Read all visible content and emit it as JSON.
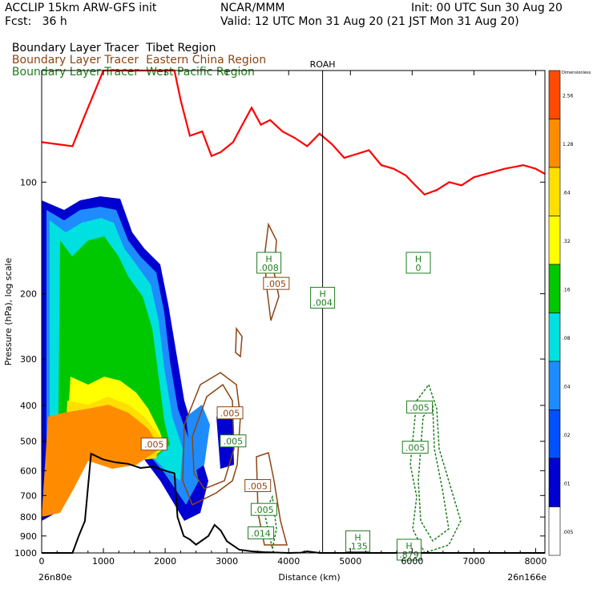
{
  "header": {
    "model": "ACCLIP 15km ARW-GFS init",
    "fcst": "Fcst:   36 h",
    "center": "NCAR/MMM",
    "init": "Init: 00 UTC Sun 30 Aug 20",
    "valid": "Valid: 12 UTC Mon 31 Aug 20 (21 JST Mon 31 Aug 20)",
    "fields": [
      {
        "name": "Boundary Layer Tracer",
        "region": "Tibet Region",
        "color": "#000000"
      },
      {
        "name": "Boundary Layer Tracer",
        "region": "Eastern China Region",
        "color": "#8b4513"
      },
      {
        "name": "Boundary Layer Tracer",
        "region": "West Pacific Region",
        "color": "#1e7d1e"
      }
    ]
  },
  "chart_data": {
    "type": "cross-section",
    "xlabel": "Distance (km)",
    "ylabel": "Pressure (hPa), log scale",
    "x_ticks": [
      "0",
      "1000",
      "2000",
      "3000",
      "4000",
      "5000",
      "6000",
      "7000",
      "8000"
    ],
    "y_ticks": [
      "100",
      "200",
      "300",
      "400",
      "500",
      "600",
      "700",
      "800",
      "900",
      "1000"
    ],
    "xlim": [
      0,
      8150
    ],
    "ylim": [
      1000,
      50
    ],
    "endpoints": {
      "left": "26n80e",
      "right": "26n166e"
    },
    "station": {
      "name": "ROAH",
      "x": 4550
    },
    "colorbar": {
      "title": "Dimensionless",
      "levels": [
        "2.56",
        "1.28",
        ".64",
        ".32",
        ".16",
        ".08",
        ".04",
        ".02",
        ".01",
        ".005"
      ],
      "colors": [
        "#ff4b00",
        "#ff8c00",
        "#ffdf00",
        "#ffff00",
        "#00c800",
        "#00e0e0",
        "#1e8cff",
        "#0050ff",
        "#0000d0",
        "#ffffff"
      ]
    },
    "tropopause": {
      "color": "#ff0000",
      "points": [
        [
          0,
          78
        ],
        [
          500,
          80
        ],
        [
          700,
          66
        ],
        [
          1000,
          50
        ],
        [
          2150,
          50
        ],
        [
          2250,
          60
        ],
        [
          2400,
          75
        ],
        [
          2600,
          73
        ],
        [
          2750,
          85
        ],
        [
          2900,
          83
        ],
        [
          3100,
          78
        ],
        [
          3250,
          70
        ],
        [
          3400,
          63
        ],
        [
          3550,
          70
        ],
        [
          3700,
          68
        ],
        [
          3900,
          73
        ],
        [
          4100,
          76
        ],
        [
          4300,
          80
        ],
        [
          4500,
          74
        ],
        [
          4700,
          79
        ],
        [
          4900,
          86
        ],
        [
          5100,
          84
        ],
        [
          5300,
          82
        ],
        [
          5500,
          90
        ],
        [
          5700,
          92
        ],
        [
          5900,
          96
        ],
        [
          6000,
          100
        ],
        [
          6200,
          108
        ],
        [
          6400,
          105
        ],
        [
          6600,
          100
        ],
        [
          6800,
          102
        ],
        [
          7000,
          97
        ],
        [
          7200,
          95
        ],
        [
          7500,
          92
        ],
        [
          7800,
          90
        ],
        [
          8000,
          92
        ],
        [
          8150,
          95
        ]
      ]
    },
    "terrain": {
      "color": "#000000",
      "points": [
        [
          0,
          1000
        ],
        [
          500,
          1000
        ],
        [
          600,
          900
        ],
        [
          700,
          820
        ],
        [
          800,
          540
        ],
        [
          1000,
          560
        ],
        [
          1200,
          570
        ],
        [
          1400,
          575
        ],
        [
          1600,
          590
        ],
        [
          1800,
          585
        ],
        [
          2000,
          600
        ],
        [
          2150,
          610
        ],
        [
          2200,
          800
        ],
        [
          2300,
          900
        ],
        [
          2400,
          920
        ],
        [
          2500,
          950
        ],
        [
          2700,
          900
        ],
        [
          2800,
          840
        ],
        [
          2900,
          870
        ],
        [
          3000,
          930
        ],
        [
          3200,
          980
        ],
        [
          3400,
          990
        ],
        [
          3600,
          995
        ],
        [
          4000,
          1000
        ],
        [
          4200,
          998
        ],
        [
          4300,
          990
        ],
        [
          4500,
          1000
        ],
        [
          8150,
          1000
        ]
      ]
    },
    "labels": [
      {
        "text": ".005",
        "x": 1820,
        "p": 510,
        "color": "#8b4513"
      },
      {
        "text": ".005",
        "x": 3050,
        "p": 420,
        "color": "#8b4513"
      },
      {
        "text": ".005",
        "x": 3100,
        "p": 500,
        "color": "#1e7d1e"
      },
      {
        "text": ".005",
        "x": 3500,
        "p": 660,
        "color": "#8b4513"
      },
      {
        "text": ".005",
        "x": 3600,
        "p": 765,
        "color": "#1e7d1e"
      },
      {
        "text": ".014",
        "x": 3550,
        "p": 885,
        "color": "#1e7d1e"
      },
      {
        "text": ".005",
        "x": 3800,
        "p": 188,
        "color": "#8b4513"
      },
      {
        "text": ".005",
        "x": 6120,
        "p": 405,
        "color": "#1e7d1e"
      },
      {
        "text": ".005",
        "x": 6050,
        "p": 520,
        "color": "#1e7d1e"
      }
    ],
    "highs": [
      {
        "text": "H",
        "value": ".008",
        "x": 3680,
        "p": 165,
        "color": "#1e7d1e"
      },
      {
        "text": "H",
        "value": ".004",
        "x": 4550,
        "p": 205,
        "color": "#1e7d1e"
      },
      {
        "text": "H",
        "value": "0",
        "x": 6100,
        "p": 165,
        "color": "#1e7d1e"
      },
      {
        "text": "H",
        "value": ".135",
        "x": 5120,
        "p": 930,
        "color": "#1e7d1e"
      },
      {
        "text": "H",
        "value": ".879",
        "x": 5950,
        "p": 980,
        "color": "#1e7d1e"
      }
    ]
  }
}
